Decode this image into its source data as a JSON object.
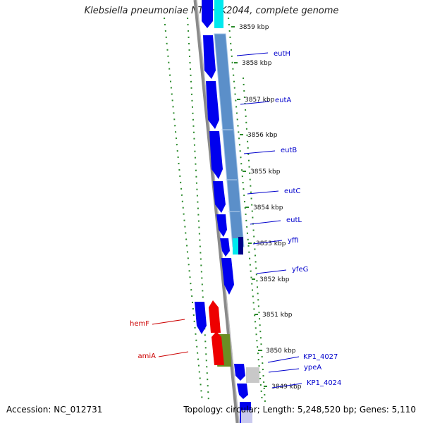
{
  "title": "Klebsiella pneumoniae NTUH-K2044, complete genome",
  "footer": {
    "accession": "Accession: NC_012731",
    "summary": "Topology: circular; Length: 5,248,520 bp; Genes: 5,110"
  },
  "colors": {
    "forward_cds": "#0000ee",
    "reverse_cds": "#ee0000",
    "olive_cds": "#6b8e23",
    "operon_band": "#5b8fc9",
    "cyan_feature": "#00e8ee",
    "gray_feature": "#c8c8c8",
    "tick_green": "#2a8a2a",
    "backbone": "#888888",
    "label_blue": "#0000cc",
    "label_red": "#cc0000"
  },
  "ticks": [
    "3859 kbp",
    "3858 kbp",
    "3857 kbp",
    "3856 kbp",
    "3855 kbp",
    "3854 kbp",
    "3853 kbp",
    "3852 kbp",
    "3851 kbp",
    "3850 kbp",
    "3849 kbp"
  ],
  "gene_labels": [
    "eutH",
    "eutA",
    "eutB",
    "eutC",
    "eutL",
    "yffI",
    "yfeG",
    "hemF",
    "amiA",
    "KP1_4027",
    "ypeA",
    "KP1_4024"
  ]
}
